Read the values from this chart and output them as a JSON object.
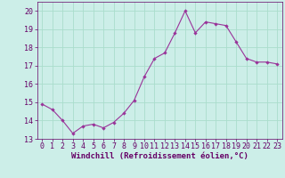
{
  "x": [
    0,
    1,
    2,
    3,
    4,
    5,
    6,
    7,
    8,
    9,
    10,
    11,
    12,
    13,
    14,
    15,
    16,
    17,
    18,
    19,
    20,
    21,
    22,
    23
  ],
  "y": [
    14.9,
    14.6,
    14.0,
    13.3,
    13.7,
    13.8,
    13.6,
    13.9,
    14.4,
    15.1,
    16.4,
    17.4,
    17.7,
    18.8,
    20.0,
    18.8,
    19.4,
    19.3,
    19.2,
    18.3,
    17.4,
    17.2,
    17.2,
    17.1
  ],
  "line_color": "#993399",
  "marker": "D",
  "marker_size": 2.2,
  "bg_color": "#cceee8",
  "grid_color": "#aaddcc",
  "xlabel": "Windchill (Refroidissement éolien,°C)",
  "xlabel_color": "#660066",
  "xlabel_fontsize": 6.5,
  "tick_color": "#660066",
  "tick_fontsize": 6.0,
  "ylim": [
    13.0,
    20.5
  ],
  "xlim": [
    -0.5,
    23.5
  ],
  "yticks": [
    13,
    14,
    15,
    16,
    17,
    18,
    19,
    20
  ],
  "xticks": [
    0,
    1,
    2,
    3,
    4,
    5,
    6,
    7,
    8,
    9,
    10,
    11,
    12,
    13,
    14,
    15,
    16,
    17,
    18,
    19,
    20,
    21,
    22,
    23
  ]
}
